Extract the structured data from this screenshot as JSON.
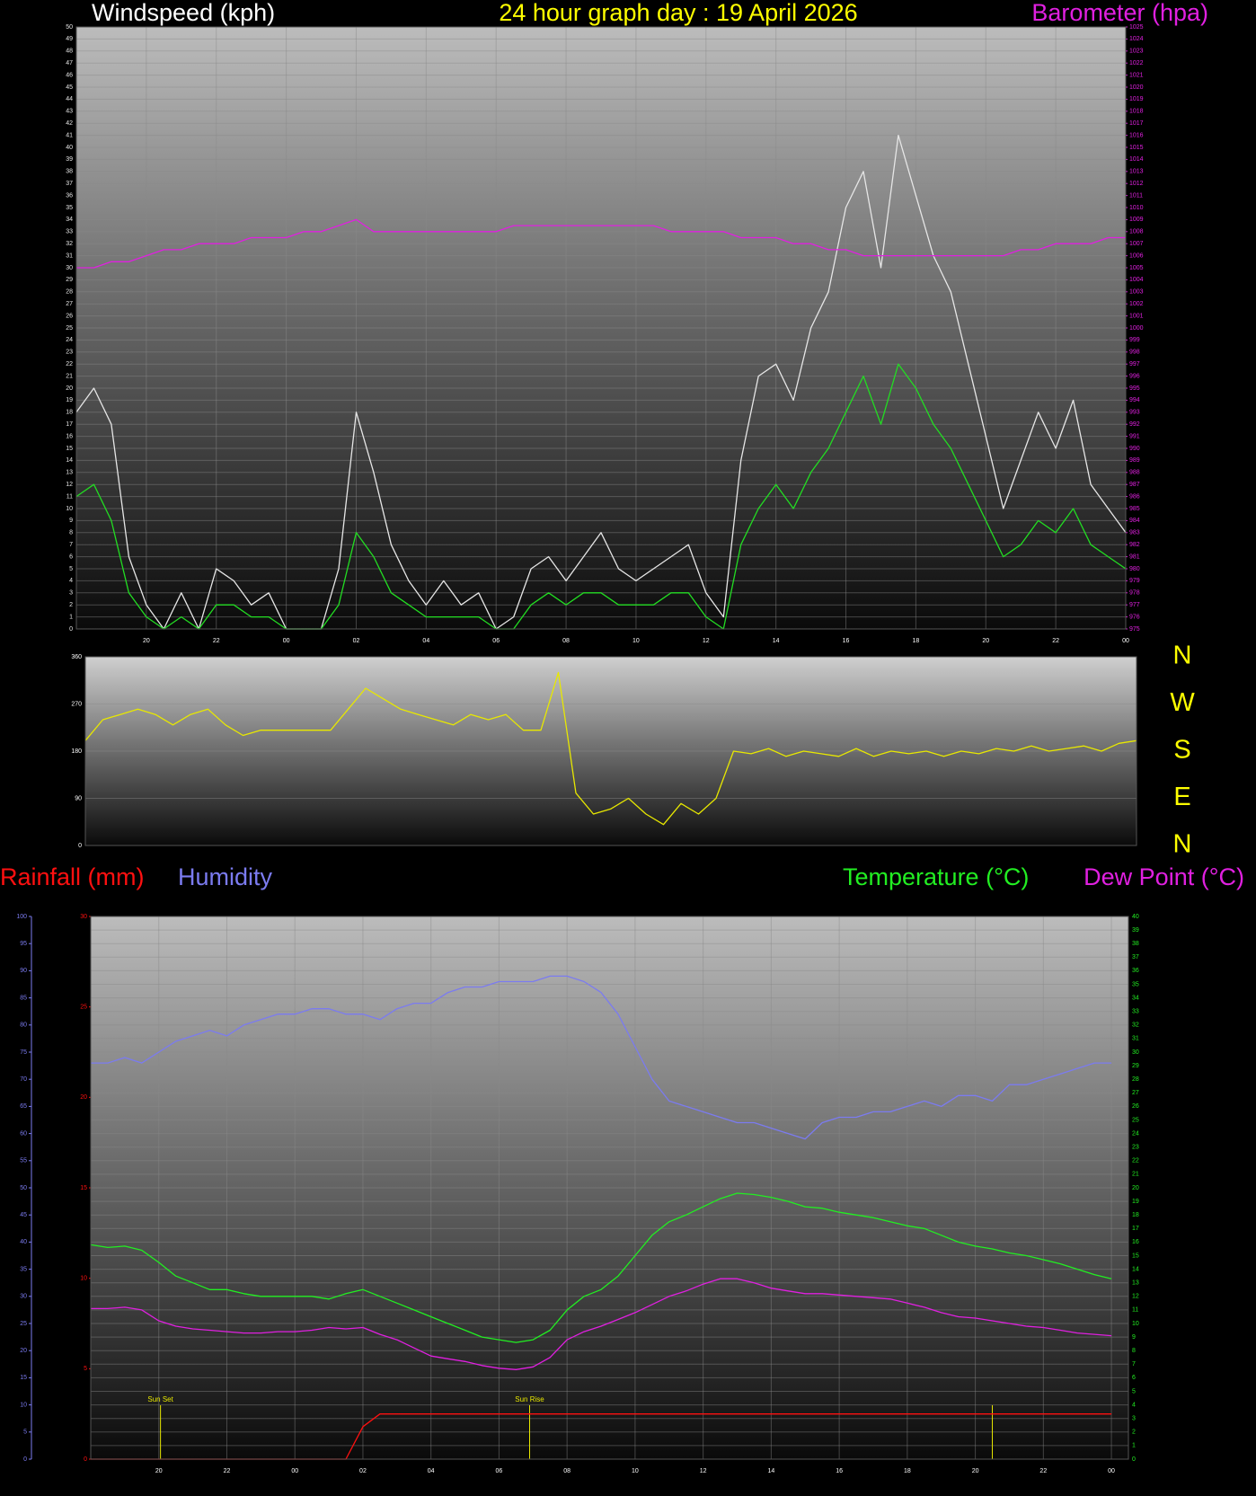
{
  "chart_data": [
    {
      "type": "line",
      "title": "24 hour graph day : 19 April 2026",
      "ylabel": "Windspeed (kph)",
      "y2label": "Barometer (hpa)",
      "x": [
        18,
        18.5,
        19,
        19.5,
        20,
        20.5,
        21,
        21.5,
        22,
        22.5,
        23,
        23.5,
        24,
        24.5,
        25,
        25.5,
        26,
        26.5,
        27,
        27.5,
        28,
        28.5,
        29,
        29.5,
        30,
        30.5,
        31,
        31.5,
        32,
        32.5,
        33,
        33.5,
        34,
        34.5,
        35,
        35.5,
        36,
        36.5,
        37,
        37.5,
        38,
        38.5,
        39,
        39.5,
        40,
        40.5,
        41,
        41.5,
        42,
        42.5,
        43,
        43.5,
        44,
        44.5,
        45,
        45.5,
        46,
        46.5,
        47,
        47.5,
        48
      ],
      "xlim": [
        18,
        48
      ],
      "xticks": [
        20,
        22,
        {
          "value": 24,
          "label": "00"
        },
        {
          "value": 26,
          "label": "02"
        },
        {
          "value": 28,
          "label": "04"
        },
        {
          "value": 30,
          "label": "06"
        },
        {
          "value": 32,
          "label": "08"
        },
        {
          "value": 34,
          "label": "10"
        },
        {
          "value": 36,
          "label": "12"
        },
        {
          "value": 38,
          "label": "14"
        },
        {
          "value": 40,
          "label": "16"
        },
        {
          "value": 42,
          "label": "18"
        },
        {
          "value": 44,
          "label": "20"
        },
        {
          "value": 46,
          "label": "22"
        },
        {
          "value": 48,
          "label": "00"
        }
      ],
      "ylim": [
        0,
        50
      ],
      "yticks": [
        0,
        1,
        2,
        3,
        4,
        5,
        6,
        7,
        8,
        9,
        10,
        11,
        12,
        13,
        14,
        15,
        16,
        17,
        18,
        19,
        20,
        21,
        22,
        23,
        24,
        25,
        26,
        27,
        28,
        29,
        30,
        31,
        32,
        33,
        34,
        35,
        36,
        37,
        38,
        39,
        40,
        41,
        42,
        43,
        44,
        45,
        46,
        47,
        48,
        49,
        50
      ],
      "y2lim": [
        975,
        1025
      ],
      "y2ticks": [
        975,
        976,
        977,
        978,
        979,
        980,
        981,
        982,
        983,
        984,
        985,
        986,
        987,
        988,
        989,
        990,
        991,
        992,
        993,
        994,
        995,
        996,
        997,
        998,
        999,
        1000,
        1001,
        1002,
        1003,
        1004,
        1005,
        1006,
        1007,
        1008,
        1009,
        1010,
        1011,
        1012,
        1013,
        1014,
        1015,
        1016,
        1017,
        1018,
        1019,
        1020,
        1021,
        1022,
        1023,
        1024,
        1025
      ],
      "grid": true,
      "series": [
        {
          "color": "#e6e6e6",
          "values": [
            18,
            20,
            17,
            6,
            2,
            0,
            3,
            0,
            5,
            4,
            2,
            3,
            0,
            0,
            0,
            5,
            18,
            13,
            7,
            4,
            2,
            4,
            2,
            3,
            0,
            1,
            5,
            6,
            4,
            6,
            8,
            5,
            4,
            5,
            6,
            7,
            3,
            1,
            14,
            21,
            22,
            19,
            25,
            28,
            35,
            38,
            30,
            41,
            36,
            31,
            28,
            22,
            16,
            10,
            14,
            18,
            15,
            19,
            12,
            10,
            8
          ]
        },
        {
          "color": "#22dd22",
          "values": [
            11,
            12,
            9,
            3,
            1,
            0,
            1,
            0,
            2,
            2,
            1,
            1,
            0,
            0,
            0,
            2,
            8,
            6,
            3,
            2,
            1,
            1,
            1,
            1,
            0,
            0,
            2,
            3,
            2,
            3,
            3,
            2,
            2,
            2,
            3,
            3,
            1,
            0,
            7,
            10,
            12,
            10,
            13,
            15,
            18,
            21,
            17,
            22,
            20,
            17,
            15,
            12,
            9,
            6,
            7,
            9,
            8,
            10,
            7,
            6,
            5
          ]
        },
        {
          "color": "#e020e0",
          "axis": "y2",
          "values": [
            1005,
            1005,
            1005.5,
            1005.5,
            1006,
            1006.5,
            1006.5,
            1007,
            1007,
            1007,
            1007.5,
            1007.5,
            1007.5,
            1008,
            1008,
            1008.5,
            1009,
            1008,
            1008,
            1008,
            1008,
            1008,
            1008,
            1008,
            1008,
            1008.5,
            1008.5,
            1008.5,
            1008.5,
            1008.5,
            1008.5,
            1008.5,
            1008.5,
            1008.5,
            1008,
            1008,
            1008,
            1008,
            1007.5,
            1007.5,
            1007.5,
            1007,
            1007,
            1006.5,
            1006.5,
            1006,
            1006,
            1006,
            1006,
            1006,
            1006,
            1006,
            1006,
            1006,
            1006.5,
            1006.5,
            1007,
            1007,
            1007,
            1007.5,
            1007.5
          ]
        }
      ]
    },
    {
      "type": "line",
      "x": [
        18,
        18.5,
        19,
        19.5,
        20,
        20.5,
        21,
        21.5,
        22,
        22.5,
        23,
        23.5,
        24,
        24.5,
        25,
        25.5,
        26,
        26.5,
        27,
        27.5,
        28,
        28.5,
        29,
        29.5,
        30,
        30.5,
        31,
        31.5,
        32,
        32.5,
        33,
        33.5,
        34,
        34.5,
        35,
        35.5,
        36,
        36.5,
        37,
        37.5,
        38,
        38.5,
        39,
        39.5,
        40,
        40.5,
        41,
        41.5,
        42,
        42.5,
        43,
        43.5,
        44,
        44.5,
        45,
        45.5,
        46,
        46.5,
        47,
        47.5,
        48
      ],
      "xlim": [
        18,
        48
      ],
      "ylim": [
        0,
        360
      ],
      "yticks": [
        0,
        90,
        180,
        270,
        360
      ],
      "grid": true,
      "direction_labels": [
        "N",
        "W",
        "S",
        "E",
        "N"
      ],
      "series": [
        {
          "color": "#e8e800",
          "values": [
            200,
            240,
            250,
            260,
            250,
            230,
            250,
            260,
            230,
            210,
            220,
            220,
            220,
            220,
            220,
            260,
            300,
            280,
            260,
            250,
            240,
            230,
            250,
            240,
            250,
            220,
            220,
            330,
            100,
            60,
            70,
            90,
            60,
            40,
            80,
            60,
            90,
            180,
            175,
            185,
            170,
            180,
            175,
            170,
            185,
            170,
            180,
            175,
            180,
            170,
            180,
            175,
            185,
            180,
            190,
            180,
            185,
            190,
            180,
            195,
            200
          ]
        }
      ]
    },
    {
      "type": "line",
      "x": [
        18,
        18.5,
        19,
        19.5,
        20,
        20.5,
        21,
        21.5,
        22,
        22.5,
        23,
        23.5,
        24,
        24.5,
        25,
        25.5,
        26,
        26.5,
        27,
        27.5,
        28,
        28.5,
        29,
        29.5,
        30,
        30.5,
        31,
        31.5,
        32,
        32.5,
        33,
        33.5,
        34,
        34.5,
        35,
        35.5,
        36,
        36.5,
        37,
        37.5,
        38,
        38.5,
        39,
        39.5,
        40,
        40.5,
        41,
        41.5,
        42,
        42.5,
        43,
        43.5,
        44,
        44.5,
        45,
        45.5,
        46,
        46.5,
        47,
        47.5,
        48
      ],
      "xlim": [
        18,
        48.5
      ],
      "xticks": [
        20,
        22,
        {
          "value": 24,
          "label": "00"
        },
        {
          "value": 26,
          "label": "02"
        },
        {
          "value": 28,
          "label": "04"
        },
        {
          "value": 30,
          "label": "06"
        },
        {
          "value": 32,
          "label": "08"
        },
        {
          "value": 34,
          "label": "10"
        },
        {
          "value": 36,
          "label": "12"
        },
        {
          "value": 38,
          "label": "14"
        },
        {
          "value": 40,
          "label": "16"
        },
        {
          "value": 42,
          "label": "18"
        },
        {
          "value": 44,
          "label": "20"
        },
        {
          "value": 46,
          "label": "22"
        },
        {
          "value": 48,
          "label": "00"
        }
      ],
      "ylim": [
        0,
        100
      ],
      "yticks": [
        0,
        5,
        10,
        15,
        20,
        25,
        30,
        35,
        40,
        45,
        50,
        55,
        60,
        65,
        70,
        75,
        80,
        85,
        90,
        95,
        100
      ],
      "y2lim": [
        0,
        40
      ],
      "y2ticks": [
        0,
        1,
        2,
        3,
        4,
        5,
        6,
        7,
        8,
        9,
        10,
        11,
        12,
        13,
        14,
        15,
        16,
        17,
        18,
        19,
        20,
        21,
        22,
        23,
        24,
        25,
        26,
        27,
        28,
        29,
        30,
        31,
        32,
        33,
        34,
        35,
        36,
        37,
        38,
        39,
        40
      ],
      "y3lim": [
        0,
        30
      ],
      "y3ticks": [
        0,
        5,
        10,
        15,
        20,
        25,
        30
      ],
      "grid": true,
      "annotations": [
        {
          "text": "Sun Set",
          "x": 20.05
        },
        {
          "text": "Sun Rise",
          "x": 30.9
        },
        {
          "x": 44.5
        }
      ],
      "series": [
        {
          "name": "Rainfall (mm)",
          "color": "#ff1010",
          "axis": "y3",
          "values": [
            0,
            0,
            0,
            0,
            0,
            0,
            0,
            0,
            0,
            0,
            0,
            0,
            0,
            0,
            0,
            0,
            1.8,
            2.5,
            2.5,
            2.5,
            2.5,
            2.5,
            2.5,
            2.5,
            2.5,
            2.5,
            2.5,
            2.5,
            2.5,
            2.5,
            2.5,
            2.5,
            2.5,
            2.5,
            2.5,
            2.5,
            2.5,
            2.5,
            2.5,
            2.5,
            2.5,
            2.5,
            2.5,
            2.5,
            2.5,
            2.5,
            2.5,
            2.5,
            2.5,
            2.5,
            2.5,
            2.5,
            2.5,
            2.5,
            2.5,
            2.5,
            2.5,
            2.5,
            2.5,
            2.5,
            2.5
          ]
        },
        {
          "name": "Humidity",
          "color": "#7b7bf0",
          "values": [
            73,
            73,
            74,
            73,
            75,
            77,
            78,
            79,
            78,
            80,
            81,
            82,
            82,
            83,
            83,
            82,
            82,
            81,
            83,
            84,
            84,
            86,
            87,
            87,
            88,
            88,
            88,
            89,
            89,
            88,
            86,
            82,
            76,
            70,
            66,
            65,
            64,
            63,
            62,
            62,
            61,
            60,
            59,
            62,
            63,
            63,
            64,
            64,
            65,
            66,
            65,
            67,
            67,
            66,
            69,
            69,
            70,
            71,
            72,
            73,
            73
          ]
        },
        {
          "name": "Temperature (°C)",
          "color": "#22ee22",
          "axis": "y2",
          "values": [
            15.8,
            15.6,
            15.7,
            15.4,
            14.5,
            13.5,
            13,
            12.5,
            12.5,
            12.2,
            12,
            12,
            12,
            12,
            11.8,
            12.2,
            12.5,
            12,
            11.5,
            11,
            10.5,
            10,
            9.5,
            9,
            8.8,
            8.6,
            8.8,
            9.5,
            11,
            12,
            12.5,
            13.5,
            15,
            16.5,
            17.5,
            18,
            18.6,
            19.2,
            19.6,
            19.5,
            19.3,
            19,
            18.6,
            18.5,
            18.2,
            18,
            17.8,
            17.5,
            17.2,
            17,
            16.5,
            16,
            15.7,
            15.5,
            15.2,
            15,
            14.7,
            14.4,
            14,
            13.6,
            13.3
          ]
        },
        {
          "name": "Dew Point (°C)",
          "color": "#e020e0",
          "axis": "y2",
          "values": [
            11.1,
            11.1,
            11.2,
            11,
            10.2,
            9.8,
            9.6,
            9.5,
            9.4,
            9.3,
            9.3,
            9.4,
            9.4,
            9.5,
            9.7,
            9.6,
            9.7,
            9.2,
            8.8,
            8.2,
            7.6,
            7.4,
            7.2,
            6.9,
            6.7,
            6.6,
            6.8,
            7.5,
            8.8,
            9.4,
            9.8,
            10.3,
            10.8,
            11.4,
            12,
            12.4,
            12.9,
            13.3,
            13.3,
            13,
            12.6,
            12.4,
            12.2,
            12.2,
            12.1,
            12,
            11.9,
            11.8,
            11.5,
            11.2,
            10.8,
            10.5,
            10.4,
            10.2,
            10,
            9.8,
            9.7,
            9.5,
            9.3,
            9.2,
            9.1
          ]
        }
      ]
    }
  ]
}
